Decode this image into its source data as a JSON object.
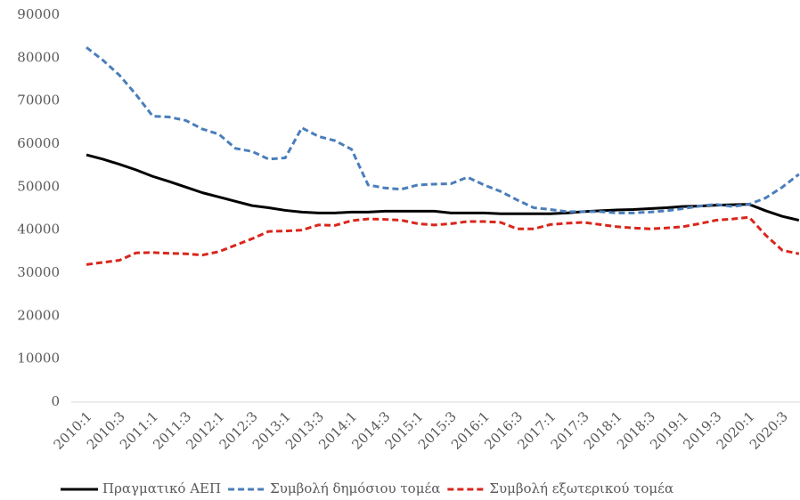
{
  "chart_data": {
    "type": "line",
    "categories": [
      "2010:1",
      null,
      "2010:3",
      null,
      "2011:1",
      null,
      "2011:3",
      null,
      "2012:1",
      null,
      "2012:3",
      null,
      "2013:1",
      null,
      "2013:3",
      null,
      "2014:1",
      null,
      "2014:3",
      null,
      "2015:1",
      null,
      "2015:3",
      null,
      "2016:1",
      null,
      "2016:3",
      null,
      "2017:1",
      null,
      "2017:3",
      null,
      "2018:1",
      null,
      "2018:3",
      null,
      "2019:1",
      null,
      "2019:3",
      null,
      "2020:1",
      null,
      "2020:3",
      null
    ],
    "series": [
      {
        "name": "Πραγματικό ΑΕΠ",
        "color": "#000000",
        "dash": false,
        "values": [
          57500,
          56500,
          55300,
          54000,
          52500,
          51300,
          50000,
          48700,
          47700,
          46700,
          45700,
          45200,
          44600,
          44200,
          44000,
          44000,
          44200,
          44200,
          44400,
          44400,
          44400,
          44400,
          44000,
          44000,
          44000,
          43800,
          43800,
          43800,
          43800,
          44000,
          44300,
          44500,
          44700,
          44800,
          45000,
          45200,
          45500,
          45600,
          45800,
          45900,
          46000,
          44500,
          43200,
          42300
        ]
      },
      {
        "name": "Συμβολή δημόσιου τομέα",
        "color": "#4a7ebb",
        "dash": true,
        "values": [
          82500,
          79500,
          76000,
          71500,
          66500,
          66300,
          65500,
          63500,
          62300,
          59000,
          58300,
          56500,
          56800,
          63800,
          61800,
          60800,
          58800,
          50500,
          49800,
          49500,
          50500,
          50700,
          50800,
          52300,
          50500,
          49000,
          47000,
          45200,
          44800,
          44300,
          44300,
          44300,
          44000,
          44000,
          44200,
          44500,
          45000,
          45600,
          46000,
          45500,
          46000,
          47500,
          50000,
          53000
        ]
      },
      {
        "name": "Συμβολή εξωτερικού τομέα",
        "color": "#d9261c",
        "dash": true,
        "values": [
          32000,
          32500,
          33000,
          34700,
          34800,
          34600,
          34500,
          34200,
          35000,
          36500,
          38000,
          39700,
          39800,
          40000,
          41200,
          41100,
          42200,
          42600,
          42500,
          42300,
          41500,
          41200,
          41500,
          42000,
          42000,
          41800,
          40300,
          40300,
          41300,
          41600,
          41800,
          41300,
          40800,
          40500,
          40300,
          40500,
          40800,
          41500,
          42300,
          42600,
          43000,
          38800,
          35300,
          34500
        ]
      }
    ],
    "ylim": [
      0,
      90000
    ],
    "yticks": [
      0,
      10000,
      20000,
      30000,
      40000,
      50000,
      60000,
      70000,
      80000,
      90000
    ],
    "grid": false,
    "legend": "bottom"
  }
}
